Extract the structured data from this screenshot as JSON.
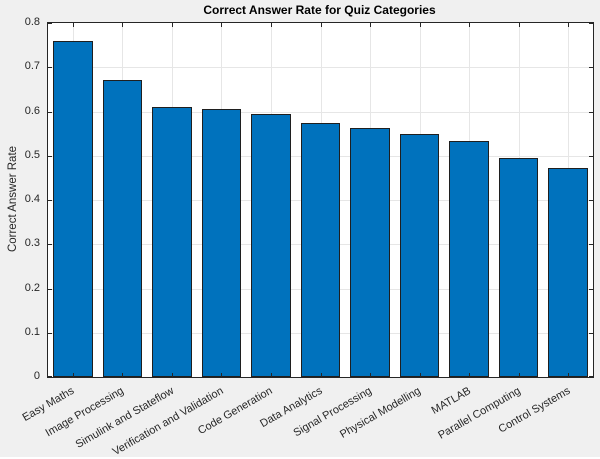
{
  "chart_data": {
    "type": "bar",
    "title": "Correct Answer Rate for Quiz Categories",
    "xlabel": "",
    "ylabel": "Correct Answer Rate",
    "categories": [
      "Easy Maths",
      "Image Processing",
      "Simulink and Stateflow",
      "Verification and Validation",
      "Code Generation",
      "Data Analytics",
      "Signal Processing",
      "Physical Modelling",
      "MATLAB",
      "Parallel Computing",
      "Control Systems"
    ],
    "values": [
      0.76,
      0.672,
      0.61,
      0.606,
      0.594,
      0.575,
      0.563,
      0.55,
      0.533,
      0.496,
      0.473
    ],
    "ylim": [
      0,
      0.8
    ],
    "yticks": [
      0,
      0.1,
      0.2,
      0.3,
      0.4,
      0.5,
      0.6,
      0.7,
      0.8
    ],
    "grid": true,
    "legend": "none",
    "bar_width_fraction": 0.8,
    "xtick_label_rotation_deg": -30,
    "colors": {
      "figure_bg": "#F0F0F0",
      "plot_bg": "#FFFFFF",
      "bar_fill": "#0072BD",
      "bar_edge": "#1F1F1F",
      "axis": "#262626",
      "grid": "#E6E6E6",
      "title_text": "#000000"
    }
  }
}
